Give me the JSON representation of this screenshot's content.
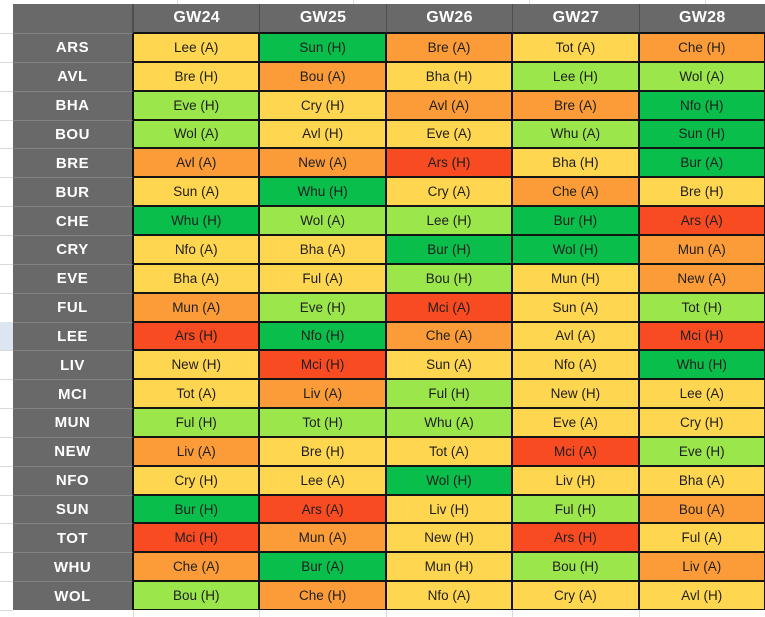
{
  "table": {
    "corner_label": "",
    "gameweeks": [
      "GW24",
      "GW25",
      "GW26",
      "GW27",
      "GW28"
    ],
    "rows": [
      {
        "team": "ARS",
        "fixtures": [
          {
            "label": "Lee (A)",
            "difficulty": "yellow"
          },
          {
            "label": "Sun (H)",
            "difficulty": "green"
          },
          {
            "label": "Bre (A)",
            "difficulty": "orange"
          },
          {
            "label": "Tot (A)",
            "difficulty": "yellow"
          },
          {
            "label": "Che (H)",
            "difficulty": "orange"
          }
        ]
      },
      {
        "team": "AVL",
        "fixtures": [
          {
            "label": "Bre (H)",
            "difficulty": "yellow"
          },
          {
            "label": "Bou (A)",
            "difficulty": "orange"
          },
          {
            "label": "Bha (H)",
            "difficulty": "yellow"
          },
          {
            "label": "Lee (H)",
            "difficulty": "lightgreen"
          },
          {
            "label": "Wol (A)",
            "difficulty": "lightgreen"
          }
        ]
      },
      {
        "team": "BHA",
        "fixtures": [
          {
            "label": "Eve (H)",
            "difficulty": "lightgreen"
          },
          {
            "label": "Cry (H)",
            "difficulty": "yellow"
          },
          {
            "label": "Avl (A)",
            "difficulty": "orange"
          },
          {
            "label": "Bre (A)",
            "difficulty": "orange"
          },
          {
            "label": "Nfo (H)",
            "difficulty": "green"
          }
        ]
      },
      {
        "team": "BOU",
        "fixtures": [
          {
            "label": "Wol (A)",
            "difficulty": "lightgreen"
          },
          {
            "label": "Avl (H)",
            "difficulty": "yellow"
          },
          {
            "label": "Eve (A)",
            "difficulty": "yellow"
          },
          {
            "label": "Whu (A)",
            "difficulty": "lightgreen"
          },
          {
            "label": "Sun (H)",
            "difficulty": "green"
          }
        ]
      },
      {
        "team": "BRE",
        "fixtures": [
          {
            "label": "Avl (A)",
            "difficulty": "orange"
          },
          {
            "label": "New (A)",
            "difficulty": "orange"
          },
          {
            "label": "Ars (H)",
            "difficulty": "red"
          },
          {
            "label": "Bha (H)",
            "difficulty": "yellow"
          },
          {
            "label": "Bur (A)",
            "difficulty": "green"
          }
        ]
      },
      {
        "team": "BUR",
        "fixtures": [
          {
            "label": "Sun (A)",
            "difficulty": "yellow"
          },
          {
            "label": "Whu (H)",
            "difficulty": "green"
          },
          {
            "label": "Cry (A)",
            "difficulty": "yellow"
          },
          {
            "label": "Che (A)",
            "difficulty": "orange"
          },
          {
            "label": "Bre (H)",
            "difficulty": "yellow"
          }
        ]
      },
      {
        "team": "CHE",
        "fixtures": [
          {
            "label": "Whu (H)",
            "difficulty": "green"
          },
          {
            "label": "Wol (A)",
            "difficulty": "lightgreen"
          },
          {
            "label": "Lee (H)",
            "difficulty": "lightgreen"
          },
          {
            "label": "Bur (H)",
            "difficulty": "green"
          },
          {
            "label": "Ars (A)",
            "difficulty": "red"
          }
        ]
      },
      {
        "team": "CRY",
        "fixtures": [
          {
            "label": "Nfo (A)",
            "difficulty": "yellow"
          },
          {
            "label": "Bha (A)",
            "difficulty": "yellow"
          },
          {
            "label": "Bur (H)",
            "difficulty": "green"
          },
          {
            "label": "Wol (H)",
            "difficulty": "green"
          },
          {
            "label": "Mun (A)",
            "difficulty": "orange"
          }
        ]
      },
      {
        "team": "EVE",
        "fixtures": [
          {
            "label": "Bha (A)",
            "difficulty": "yellow"
          },
          {
            "label": "Ful (A)",
            "difficulty": "yellow"
          },
          {
            "label": "Bou (H)",
            "difficulty": "lightgreen"
          },
          {
            "label": "Mun (H)",
            "difficulty": "yellow"
          },
          {
            "label": "New (A)",
            "difficulty": "orange"
          }
        ]
      },
      {
        "team": "FUL",
        "fixtures": [
          {
            "label": "Mun (A)",
            "difficulty": "orange"
          },
          {
            "label": "Eve (H)",
            "difficulty": "lightgreen"
          },
          {
            "label": "Mci (A)",
            "difficulty": "red"
          },
          {
            "label": "Sun (A)",
            "difficulty": "yellow"
          },
          {
            "label": "Tot (H)",
            "difficulty": "lightgreen"
          }
        ]
      },
      {
        "team": "LEE",
        "fixtures": [
          {
            "label": "Ars (H)",
            "difficulty": "red"
          },
          {
            "label": "Nfo (H)",
            "difficulty": "green"
          },
          {
            "label": "Che (A)",
            "difficulty": "orange"
          },
          {
            "label": "Avl (A)",
            "difficulty": "yellow"
          },
          {
            "label": "Mci (H)",
            "difficulty": "red"
          }
        ]
      },
      {
        "team": "LIV",
        "fixtures": [
          {
            "label": "New (H)",
            "difficulty": "yellow"
          },
          {
            "label": "Mci (H)",
            "difficulty": "red"
          },
          {
            "label": "Sun (A)",
            "difficulty": "yellow"
          },
          {
            "label": "Nfo (A)",
            "difficulty": "yellow"
          },
          {
            "label": "Whu (H)",
            "difficulty": "green"
          }
        ]
      },
      {
        "team": "MCI",
        "fixtures": [
          {
            "label": "Tot (A)",
            "difficulty": "yellow"
          },
          {
            "label": "Liv (A)",
            "difficulty": "orange"
          },
          {
            "label": "Ful (H)",
            "difficulty": "lightgreen"
          },
          {
            "label": "New (H)",
            "difficulty": "yellow"
          },
          {
            "label": "Lee (A)",
            "difficulty": "yellow"
          }
        ]
      },
      {
        "team": "MUN",
        "fixtures": [
          {
            "label": "Ful (H)",
            "difficulty": "lightgreen"
          },
          {
            "label": "Tot (H)",
            "difficulty": "lightgreen"
          },
          {
            "label": "Whu (A)",
            "difficulty": "lightgreen"
          },
          {
            "label": "Eve (A)",
            "difficulty": "yellow"
          },
          {
            "label": "Cry (H)",
            "difficulty": "yellow"
          }
        ]
      },
      {
        "team": "NEW",
        "fixtures": [
          {
            "label": "Liv (A)",
            "difficulty": "orange"
          },
          {
            "label": "Bre (H)",
            "difficulty": "yellow"
          },
          {
            "label": "Tot (A)",
            "difficulty": "yellow"
          },
          {
            "label": "Mci (A)",
            "difficulty": "red"
          },
          {
            "label": "Eve (H)",
            "difficulty": "lightgreen"
          }
        ]
      },
      {
        "team": "NFO",
        "fixtures": [
          {
            "label": "Cry (H)",
            "difficulty": "yellow"
          },
          {
            "label": "Lee (A)",
            "difficulty": "yellow"
          },
          {
            "label": "Wol (H)",
            "difficulty": "green"
          },
          {
            "label": "Liv (H)",
            "difficulty": "yellow"
          },
          {
            "label": "Bha (A)",
            "difficulty": "yellow"
          }
        ]
      },
      {
        "team": "SUN",
        "fixtures": [
          {
            "label": "Bur (H)",
            "difficulty": "green"
          },
          {
            "label": "Ars (A)",
            "difficulty": "red"
          },
          {
            "label": "Liv (H)",
            "difficulty": "yellow"
          },
          {
            "label": "Ful (H)",
            "difficulty": "lightgreen"
          },
          {
            "label": "Bou (A)",
            "difficulty": "orange"
          }
        ]
      },
      {
        "team": "TOT",
        "fixtures": [
          {
            "label": "Mci (H)",
            "difficulty": "red"
          },
          {
            "label": "Mun (A)",
            "difficulty": "orange"
          },
          {
            "label": "New (H)",
            "difficulty": "yellow"
          },
          {
            "label": "Ars (H)",
            "difficulty": "red"
          },
          {
            "label": "Ful (A)",
            "difficulty": "yellow"
          }
        ]
      },
      {
        "team": "WHU",
        "fixtures": [
          {
            "label": "Che (A)",
            "difficulty": "orange"
          },
          {
            "label": "Bur (A)",
            "difficulty": "green"
          },
          {
            "label": "Mun (H)",
            "difficulty": "yellow"
          },
          {
            "label": "Bou (H)",
            "difficulty": "lightgreen"
          },
          {
            "label": "Liv (A)",
            "difficulty": "orange"
          }
        ]
      },
      {
        "team": "WOL",
        "fixtures": [
          {
            "label": "Bou (H)",
            "difficulty": "lightgreen"
          },
          {
            "label": "Che (H)",
            "difficulty": "orange"
          },
          {
            "label": "Nfo (A)",
            "difficulty": "yellow"
          },
          {
            "label": "Cry (A)",
            "difficulty": "yellow"
          },
          {
            "label": "Avl (H)",
            "difficulty": "yellow"
          }
        ]
      }
    ],
    "highlighted_margin_row": "LEE"
  },
  "difficulty_colors": {
    "green": "#0abe4b",
    "lightgreen": "#9ae64b",
    "yellow": "#ffd64f",
    "orange": "#fb9c38",
    "red": "#f94b21"
  },
  "chrome": {
    "header_bg": "#696969",
    "header_text": "#ffffff",
    "row_highlight": "#dce6f2",
    "gridline": "#d9d9d9"
  }
}
